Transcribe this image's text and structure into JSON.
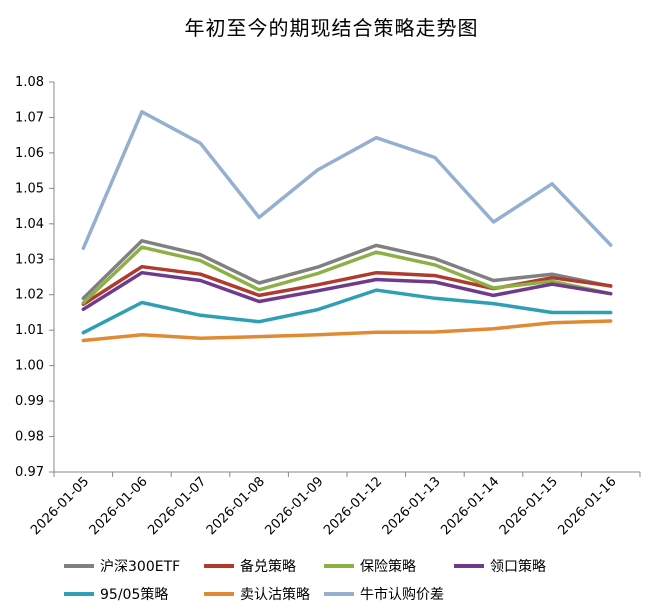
{
  "chart_data": {
    "type": "line",
    "title": "年初至今的期现结合策略走势图",
    "xlabel": "",
    "ylabel": "",
    "categories": [
      "2026-01-05",
      "2026-01-06",
      "2026-01-07",
      "2026-01-08",
      "2026-01-09",
      "2026-01-12",
      "2026-01-13",
      "2026-01-14",
      "2026-01-15",
      "2026-01-16"
    ],
    "ylim": [
      0.97,
      1.08
    ],
    "yticks": [
      "0.97",
      "0.98",
      "0.99",
      "1.00",
      "1.01",
      "1.02",
      "1.03",
      "1.04",
      "1.05",
      "1.06",
      "1.07",
      "1.08"
    ],
    "grid": false,
    "legend_position": "bottom",
    "series": [
      {
        "name": "沪深300ETF",
        "color": "#808080",
        "values": [
          1.019,
          1.0352,
          1.0313,
          1.0233,
          1.0278,
          1.0339,
          1.0302,
          1.024,
          1.0258,
          1.0224
        ]
      },
      {
        "name": "备兑策略",
        "color": "#b03a2e",
        "values": [
          1.0173,
          1.0279,
          1.0258,
          1.0198,
          1.0228,
          1.0262,
          1.0254,
          1.0217,
          1.0248,
          1.0225
        ]
      },
      {
        "name": "保险策略",
        "color": "#8db045",
        "values": [
          1.0177,
          1.0334,
          1.0296,
          1.0214,
          1.026,
          1.032,
          1.0284,
          1.0219,
          1.0238,
          1.0203
        ]
      },
      {
        "name": "领口策略",
        "color": "#6f3a8c",
        "values": [
          1.0159,
          1.0262,
          1.024,
          1.0181,
          1.0211,
          1.0243,
          1.0236,
          1.0198,
          1.023,
          1.0203
        ]
      },
      {
        "name": "95/05策略",
        "color": "#2e9fb5",
        "values": [
          1.0093,
          1.0178,
          1.0142,
          1.0124,
          1.0158,
          1.0213,
          1.019,
          1.0175,
          1.015,
          1.015
        ]
      },
      {
        "name": "卖认沽策略",
        "color": "#e08b34",
        "values": [
          1.0071,
          1.0087,
          1.0077,
          1.0082,
          1.0087,
          1.0094,
          1.0095,
          1.0104,
          1.0121,
          1.0126
        ]
      },
      {
        "name": "牛市认购价差",
        "color": "#95afd0",
        "values": [
          1.0331,
          1.0716,
          1.0627,
          1.0418,
          1.0552,
          1.0643,
          1.0587,
          1.0405,
          1.0513,
          1.034
        ]
      }
    ]
  }
}
